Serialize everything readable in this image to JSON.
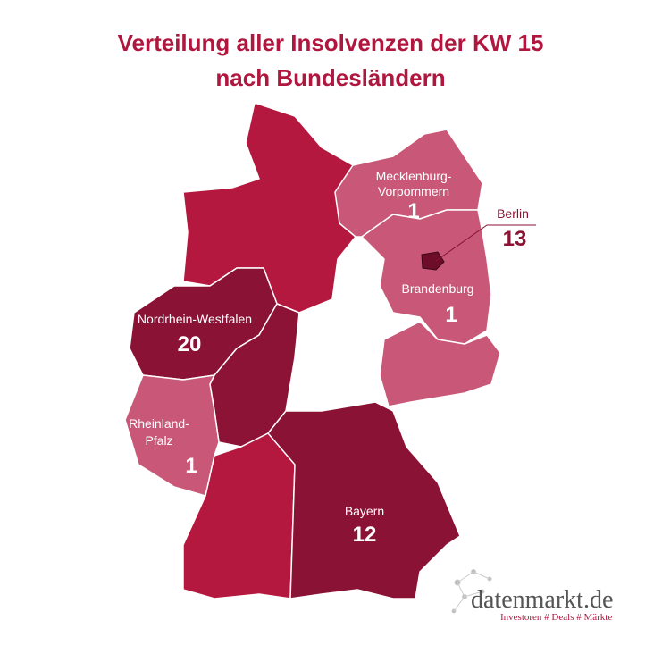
{
  "title": [
    "Verteilung aller Insolvenzen der KW 15",
    "nach Bundesländern"
  ],
  "regions": [
    {
      "name_lines": [
        "Mecklenburg-",
        "Vorpommern"
      ],
      "value": 1
    },
    {
      "name_lines": [
        "Berlin"
      ],
      "value": 13
    },
    {
      "name_lines": [
        "Brandenburg"
      ],
      "value": 1
    },
    {
      "name_lines": [
        "Nordrhein-Westfalen"
      ],
      "value": 20
    },
    {
      "name_lines": [
        "Rheinland-",
        "Pfalz"
      ],
      "value": 1
    },
    {
      "name_lines": [
        "Bayern"
      ],
      "value": 12
    }
  ],
  "logo": {
    "name": "datenmarkt.de",
    "tagline": "Investoren # Deals # Märkte"
  }
}
